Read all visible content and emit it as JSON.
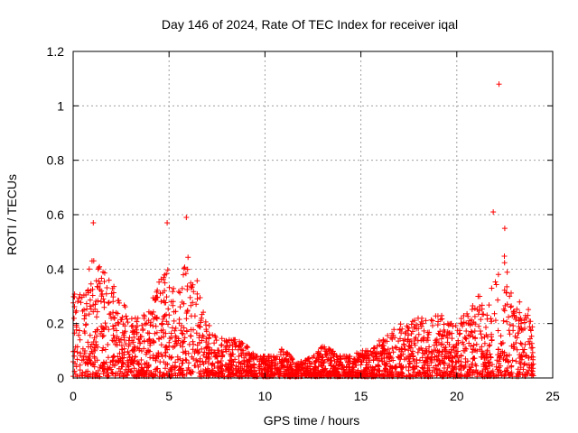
{
  "chart_data": {
    "type": "scatter",
    "title": "Day 146 of 2024, Rate Of TEC Index for receiver iqal",
    "xlabel": "GPS time / hours",
    "ylabel": "ROTI / TECUs",
    "xlim": [
      0,
      25
    ],
    "ylim": [
      0,
      1.2
    ],
    "xticks": [
      0,
      5,
      10,
      15,
      20,
      25
    ],
    "xtick_labels": [
      "0",
      "5",
      "10",
      "15",
      "20",
      "25"
    ],
    "yticks": [
      0,
      0.2,
      0.4,
      0.6,
      0.8,
      1,
      1.2
    ],
    "ytick_labels": [
      "0",
      "0.2",
      "0.4",
      "0.6",
      "0.8",
      "1",
      "1.2"
    ],
    "grid": true,
    "marker": "+",
    "marker_color": "#ff0000",
    "series": [
      {
        "name": "ROTI",
        "envelope_hours": [
          0,
          0.5,
          1,
          1.5,
          2,
          2.5,
          3,
          3.5,
          4,
          4.5,
          5,
          5.5,
          6,
          6.5,
          7,
          7.5,
          8,
          8.5,
          9,
          9.5,
          10,
          10.5,
          11,
          11.5,
          12,
          12.5,
          13,
          13.5,
          14,
          14.5,
          15,
          15.5,
          16,
          16.5,
          17,
          17.5,
          18,
          18.5,
          19,
          19.5,
          20,
          20.5,
          21,
          21.5,
          22,
          22.5,
          23,
          23.5,
          24
        ],
        "envelope_max": [
          0.32,
          0.3,
          0.45,
          0.4,
          0.35,
          0.3,
          0.22,
          0.22,
          0.25,
          0.38,
          0.42,
          0.35,
          0.45,
          0.36,
          0.2,
          0.16,
          0.14,
          0.14,
          0.12,
          0.08,
          0.08,
          0.08,
          0.12,
          0.06,
          0.06,
          0.08,
          0.12,
          0.1,
          0.08,
          0.08,
          0.1,
          0.1,
          0.14,
          0.16,
          0.2,
          0.2,
          0.22,
          0.24,
          0.25,
          0.2,
          0.2,
          0.24,
          0.3,
          0.3,
          0.38,
          0.45,
          0.3,
          0.28,
          0.22
        ],
        "outliers": [
          {
            "x": 1.05,
            "y": 0.57
          },
          {
            "x": 4.9,
            "y": 0.57
          },
          {
            "x": 5.9,
            "y": 0.59
          },
          {
            "x": 21.9,
            "y": 0.61
          },
          {
            "x": 22.5,
            "y": 0.55
          },
          {
            "x": 22.2,
            "y": 1.08
          }
        ]
      }
    ]
  }
}
